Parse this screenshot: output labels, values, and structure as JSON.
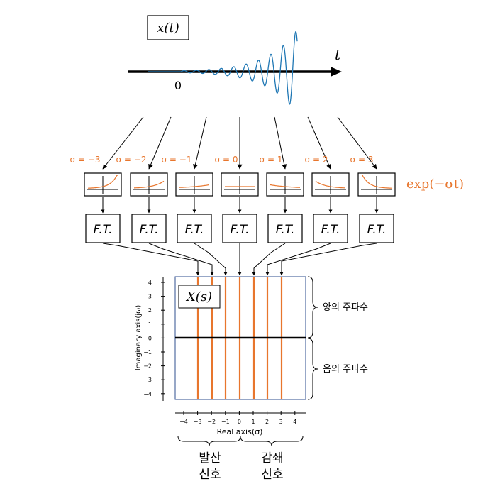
{
  "signal_box": {
    "label": "x(t)"
  },
  "time_axis": {
    "t_label": "t",
    "origin_label": "0"
  },
  "sigma_labels": [
    "σ = −3",
    "σ = −2",
    "σ = −1",
    "σ = 0",
    "σ = 1",
    "σ = 2",
    "σ = 3"
  ],
  "sigma_values": [
    -3,
    -2,
    -1,
    0,
    1,
    2,
    3
  ],
  "exp_label": "exp(−σt)",
  "ft_label": "F.T.",
  "splane": {
    "box_label": "X(s)",
    "ylabel": "Imaginary axis(jω)",
    "xlabel": "Real axis(σ)",
    "yticks": [
      "4",
      "3",
      "2",
      "1",
      "0",
      "−1",
      "−2",
      "−3",
      "−4"
    ],
    "xticks": [
      "−4",
      "−3",
      "−2",
      "−1",
      "0",
      "1",
      "2",
      "3",
      "4"
    ]
  },
  "brace_labels": {
    "positive_freq": "양의 주파수",
    "negative_freq": "음의 주파수",
    "diverging_line1": "발산",
    "diverging_line2": "신호",
    "damped_line1": "감쇄",
    "damped_line2": "신호"
  },
  "colors": {
    "accent": "#e8762d",
    "signal": "#1f77b4",
    "frame": "#2f4f8f"
  }
}
